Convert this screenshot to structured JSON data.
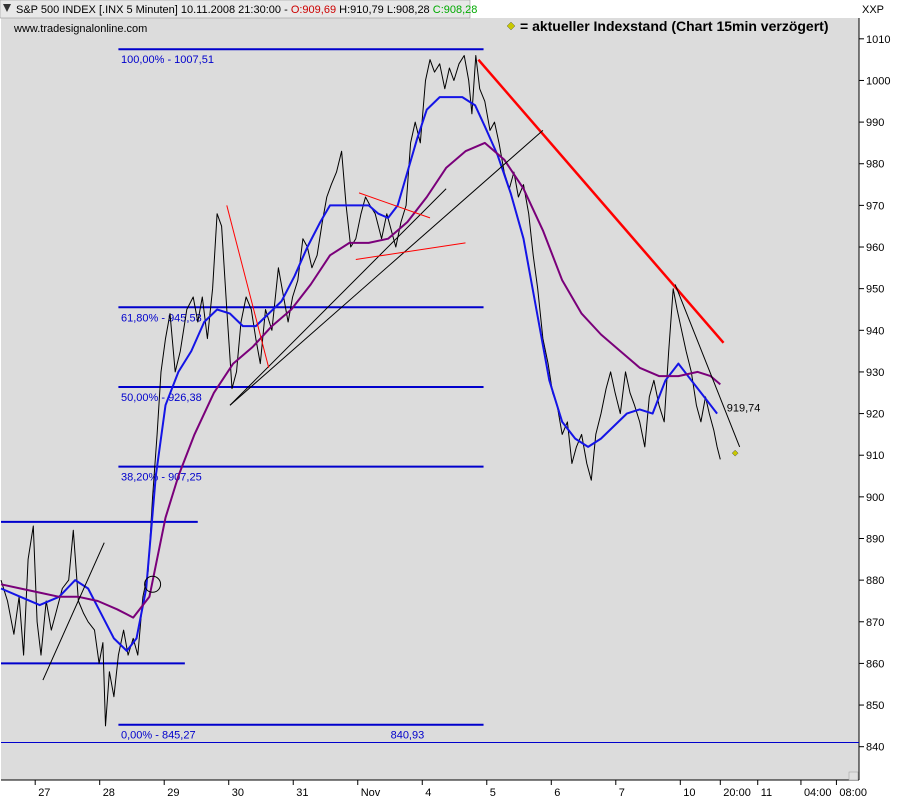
{
  "header": {
    "instrument": "S&P 500 INDEX [.INX  5 Minuten]",
    "datetime": "10.11.2008 21:30:00",
    "sep": "-",
    "open": "O:909,69",
    "high": "H:910,79",
    "low": "L:908,28",
    "close": "C:908,28",
    "source": "www.tradesignalonline.com",
    "symbol": "XXP",
    "legend_text": "= aktueller Indexstand (Chart 15min verzögert)"
  },
  "colors": {
    "background": "#dcdcdc",
    "price": "#000000",
    "ma_fast": "#1414e6",
    "ma_slow": "#7a007a",
    "fib": "#0000cc",
    "trend_red": "#ff0000",
    "highlight_close": "#c8c800",
    "header_red": "#cc0000",
    "header_green": "#00aa00"
  },
  "chart_data": {
    "type": "line",
    "ylim": [
      832,
      1015
    ],
    "y_ticks": [
      840,
      850,
      860,
      870,
      880,
      890,
      900,
      910,
      920,
      930,
      940,
      950,
      960,
      970,
      980,
      990,
      1000,
      1010
    ],
    "x_ticks": [
      {
        "x": 0.53,
        "label": "27"
      },
      {
        "x": 1.53,
        "label": "28"
      },
      {
        "x": 2.53,
        "label": "29"
      },
      {
        "x": 3.53,
        "label": "30"
      },
      {
        "x": 4.53,
        "label": "31"
      },
      {
        "x": 5.53,
        "label": "Nov"
      },
      {
        "x": 6.53,
        "label": "4"
      },
      {
        "x": 7.53,
        "label": "5"
      },
      {
        "x": 8.53,
        "label": "6"
      },
      {
        "x": 9.53,
        "label": "7"
      },
      {
        "x": 10.53,
        "label": "10"
      },
      {
        "x": 11.15,
        "label": "20:00"
      },
      {
        "x": 11.73,
        "label": "11"
      },
      {
        "x": 12.4,
        "label": "04:00"
      },
      {
        "x": 12.95,
        "label": "08:00"
      }
    ],
    "xlim": [
      0,
      13.3
    ],
    "series": [
      {
        "name": "",
        "role": "price",
        "points": [
          [
            0,
            880
          ],
          [
            0.1,
            875
          ],
          [
            0.2,
            867
          ],
          [
            0.28,
            876
          ],
          [
            0.35,
            862
          ],
          [
            0.42,
            885
          ],
          [
            0.5,
            893
          ],
          [
            0.56,
            870
          ],
          [
            0.62,
            862
          ],
          [
            0.7,
            875
          ],
          [
            0.78,
            868
          ],
          [
            0.85,
            872
          ],
          [
            0.95,
            878
          ],
          [
            1.05,
            880
          ],
          [
            1.12,
            892
          ],
          [
            1.2,
            875
          ],
          [
            1.28,
            872
          ],
          [
            1.35,
            870
          ],
          [
            1.45,
            868
          ],
          [
            1.52,
            860
          ],
          [
            1.58,
            865
          ],
          [
            1.62,
            845
          ],
          [
            1.68,
            858
          ],
          [
            1.75,
            852
          ],
          [
            1.82,
            862
          ],
          [
            1.9,
            868
          ],
          [
            1.97,
            862
          ],
          [
            2.05,
            866
          ],
          [
            2.12,
            862
          ],
          [
            2.2,
            876
          ],
          [
            2.28,
            882
          ],
          [
            2.35,
            900
          ],
          [
            2.42,
            915
          ],
          [
            2.48,
            930
          ],
          [
            2.55,
            938
          ],
          [
            2.62,
            944
          ],
          [
            2.7,
            930
          ],
          [
            2.78,
            935
          ],
          [
            2.88,
            945
          ],
          [
            2.98,
            948
          ],
          [
            3.05,
            942
          ],
          [
            3.12,
            948
          ],
          [
            3.2,
            938
          ],
          [
            3.28,
            950
          ],
          [
            3.35,
            968
          ],
          [
            3.42,
            965
          ],
          [
            3.5,
            945
          ],
          [
            3.58,
            926
          ],
          [
            3.65,
            930
          ],
          [
            3.72,
            942
          ],
          [
            3.8,
            948
          ],
          [
            3.88,
            945
          ],
          [
            3.95,
            938
          ],
          [
            4.02,
            932
          ],
          [
            4.1,
            945
          ],
          [
            4.2,
            940
          ],
          [
            4.3,
            955
          ],
          [
            4.38,
            948
          ],
          [
            4.45,
            942
          ],
          [
            4.52,
            948
          ],
          [
            4.6,
            952
          ],
          [
            4.68,
            962
          ],
          [
            4.75,
            960
          ],
          [
            4.82,
            955
          ],
          [
            4.9,
            958
          ],
          [
            4.98,
            966
          ],
          [
            5.05,
            972
          ],
          [
            5.12,
            975
          ],
          [
            5.2,
            978
          ],
          [
            5.28,
            983
          ],
          [
            5.35,
            970
          ],
          [
            5.42,
            960
          ],
          [
            5.5,
            962
          ],
          [
            5.58,
            968
          ],
          [
            5.65,
            972
          ],
          [
            5.72,
            970
          ],
          [
            5.8,
            968
          ],
          [
            5.9,
            962
          ],
          [
            5.98,
            968
          ],
          [
            6.05,
            964
          ],
          [
            6.12,
            960
          ],
          [
            6.2,
            966
          ],
          [
            6.28,
            970
          ],
          [
            6.35,
            985
          ],
          [
            6.42,
            990
          ],
          [
            6.5,
            985
          ],
          [
            6.58,
            1000
          ],
          [
            6.65,
            1005
          ],
          [
            6.72,
            1002
          ],
          [
            6.8,
            1004
          ],
          [
            6.88,
            998
          ],
          [
            6.95,
            1003
          ],
          [
            7.02,
            1000
          ],
          [
            7.1,
            1004
          ],
          [
            7.18,
            1006
          ],
          [
            7.25,
            1000
          ],
          [
            7.3,
            992
          ],
          [
            7.36,
            1006
          ],
          [
            7.42,
            998
          ],
          [
            7.5,
            995
          ],
          [
            7.58,
            988
          ],
          [
            7.65,
            990
          ],
          [
            7.72,
            985
          ],
          [
            7.8,
            978
          ],
          [
            7.88,
            974
          ],
          [
            7.95,
            978
          ],
          [
            8.02,
            972
          ],
          [
            8.1,
            975
          ],
          [
            8.18,
            968
          ],
          [
            8.25,
            958
          ],
          [
            8.32,
            950
          ],
          [
            8.4,
            938
          ],
          [
            8.48,
            932
          ],
          [
            8.55,
            925
          ],
          [
            8.62,
            922
          ],
          [
            8.7,
            915
          ],
          [
            8.78,
            918
          ],
          [
            8.85,
            908
          ],
          [
            8.92,
            912
          ],
          [
            9.0,
            915
          ],
          [
            9.08,
            908
          ],
          [
            9.15,
            904
          ],
          [
            9.22,
            915
          ],
          [
            9.3,
            920
          ],
          [
            9.38,
            926
          ],
          [
            9.45,
            930
          ],
          [
            9.52,
            925
          ],
          [
            9.6,
            920
          ],
          [
            9.68,
            930
          ],
          [
            9.75,
            925
          ],
          [
            9.82,
            922
          ],
          [
            9.9,
            918
          ],
          [
            9.98,
            912
          ],
          [
            10.05,
            924
          ],
          [
            10.12,
            928
          ],
          [
            10.2,
            922
          ],
          [
            10.28,
            918
          ],
          [
            10.35,
            935
          ],
          [
            10.42,
            950
          ],
          [
            10.48,
            945
          ],
          [
            10.55,
            940
          ],
          [
            10.62,
            935
          ],
          [
            10.7,
            930
          ],
          [
            10.78,
            922
          ],
          [
            10.85,
            918
          ],
          [
            10.92,
            924
          ],
          [
            10.98,
            920
          ],
          [
            11.05,
            916
          ],
          [
            11.1,
            912
          ],
          [
            11.15,
            909
          ]
        ]
      },
      {
        "name": "",
        "role": "ma_fast",
        "points": [
          [
            0,
            878
          ],
          [
            0.3,
            876
          ],
          [
            0.6,
            874
          ],
          [
            0.9,
            876
          ],
          [
            1.15,
            880
          ],
          [
            1.35,
            878
          ],
          [
            1.55,
            872
          ],
          [
            1.75,
            866
          ],
          [
            1.95,
            863
          ],
          [
            2.1,
            866
          ],
          [
            2.25,
            878
          ],
          [
            2.4,
            905
          ],
          [
            2.55,
            922
          ],
          [
            2.75,
            930
          ],
          [
            2.95,
            935
          ],
          [
            3.15,
            942
          ],
          [
            3.35,
            945
          ],
          [
            3.55,
            944
          ],
          [
            3.75,
            941
          ],
          [
            3.95,
            941
          ],
          [
            4.15,
            944
          ],
          [
            4.35,
            947
          ],
          [
            4.55,
            953
          ],
          [
            4.75,
            960
          ],
          [
            4.95,
            966
          ],
          [
            5.1,
            970
          ],
          [
            5.3,
            970
          ],
          [
            5.5,
            970
          ],
          [
            5.7,
            970
          ],
          [
            5.85,
            968
          ],
          [
            6.0,
            967
          ],
          [
            6.15,
            970
          ],
          [
            6.3,
            978
          ],
          [
            6.45,
            986
          ],
          [
            6.6,
            993
          ],
          [
            6.8,
            996
          ],
          [
            7.0,
            996
          ],
          [
            7.15,
            996
          ],
          [
            7.35,
            994
          ],
          [
            7.5,
            989
          ],
          [
            7.7,
            982
          ],
          [
            7.9,
            973
          ],
          [
            8.1,
            962
          ],
          [
            8.3,
            945
          ],
          [
            8.5,
            928
          ],
          [
            8.7,
            918
          ],
          [
            8.9,
            914
          ],
          [
            9.1,
            912
          ],
          [
            9.3,
            914
          ],
          [
            9.5,
            917
          ],
          [
            9.7,
            920
          ],
          [
            9.9,
            921
          ],
          [
            10.1,
            920
          ],
          [
            10.3,
            928
          ],
          [
            10.5,
            932
          ],
          [
            10.7,
            928
          ],
          [
            10.9,
            924
          ],
          [
            11.1,
            920
          ]
        ]
      },
      {
        "name": "",
        "role": "ma_slow",
        "points": [
          [
            0,
            879
          ],
          [
            0.3,
            878
          ],
          [
            0.6,
            877
          ],
          [
            0.9,
            876
          ],
          [
            1.2,
            876
          ],
          [
            1.5,
            875
          ],
          [
            1.8,
            873
          ],
          [
            2.05,
            871
          ],
          [
            2.3,
            876
          ],
          [
            2.55,
            895
          ],
          [
            2.75,
            905
          ],
          [
            3.0,
            915
          ],
          [
            3.3,
            925
          ],
          [
            3.6,
            932
          ],
          [
            3.9,
            936
          ],
          [
            4.2,
            941
          ],
          [
            4.5,
            945
          ],
          [
            4.8,
            951
          ],
          [
            5.1,
            958
          ],
          [
            5.4,
            961
          ],
          [
            5.7,
            961
          ],
          [
            6.0,
            962
          ],
          [
            6.3,
            966
          ],
          [
            6.6,
            972
          ],
          [
            6.9,
            979
          ],
          [
            7.2,
            983
          ],
          [
            7.5,
            985
          ],
          [
            7.8,
            981
          ],
          [
            8.1,
            974
          ],
          [
            8.4,
            964
          ],
          [
            8.7,
            952
          ],
          [
            9.0,
            944
          ],
          [
            9.3,
            939
          ],
          [
            9.6,
            935
          ],
          [
            9.9,
            931
          ],
          [
            10.2,
            929
          ],
          [
            10.5,
            929
          ],
          [
            10.8,
            930
          ],
          [
            11.0,
            929
          ],
          [
            11.15,
            927
          ]
        ]
      }
    ],
    "fib_levels": [
      {
        "price": 1007.51,
        "label": "100,00% - 1007,51",
        "x1": 1.82,
        "x2": 7.48,
        "label_x": 1.86
      },
      {
        "price": 945.53,
        "label": "61,80% - 945,53",
        "x1": 1.82,
        "x2": 7.48,
        "label_x": 1.86
      },
      {
        "price": 926.38,
        "label": "50,00% - 926,38",
        "x1": 1.82,
        "x2": 7.48,
        "label_x": 1.86
      },
      {
        "price": 907.25,
        "label": "38,20% - 907,25",
        "x1": 1.82,
        "x2": 7.48,
        "label_x": 1.86
      },
      {
        "price": 845.27,
        "label": "0,00% - 845,27",
        "x1": 1.82,
        "x2": 7.48,
        "label_x": 1.86
      }
    ],
    "h_lines": [
      {
        "price": 894,
        "x1": 0,
        "x2": 3.05
      },
      {
        "price": 860,
        "x1": 0,
        "x2": 2.85
      },
      {
        "price": 841,
        "x1": 0,
        "x2": 13.3
      }
    ],
    "trend_lines": [
      {
        "kind": "red_bold",
        "x1": 7.4,
        "y1": 1005,
        "x2": 11.2,
        "y2": 937
      },
      {
        "kind": "black",
        "x1": 3.55,
        "y1": 922,
        "x2": 6.9,
        "y2": 974
      },
      {
        "kind": "black",
        "x1": 3.55,
        "y1": 922,
        "x2": 8.4,
        "y2": 988
      },
      {
        "kind": "black",
        "x1": 0.65,
        "y1": 856,
        "x2": 1.6,
        "y2": 889
      },
      {
        "kind": "black",
        "x1": 10.45,
        "y1": 951,
        "x2": 11.45,
        "y2": 912
      },
      {
        "kind": "red_thin",
        "x1": 3.5,
        "y1": 970,
        "x2": 4.15,
        "y2": 931
      },
      {
        "kind": "red_thin",
        "x1": 5.5,
        "y1": 957,
        "x2": 7.2,
        "y2": 961
      },
      {
        "kind": "red_thin",
        "x1": 5.55,
        "y1": 973,
        "x2": 6.65,
        "y2": 967
      }
    ],
    "annotations": [
      {
        "label": "840,93",
        "x": 6.3,
        "y": 842
      },
      {
        "label": "919,74",
        "x": 11.25,
        "y": 920.5
      }
    ],
    "circle_marker": {
      "x": 2.35,
      "y": 879
    },
    "last_marker": {
      "x": 11.38,
      "y": 910.5
    }
  }
}
